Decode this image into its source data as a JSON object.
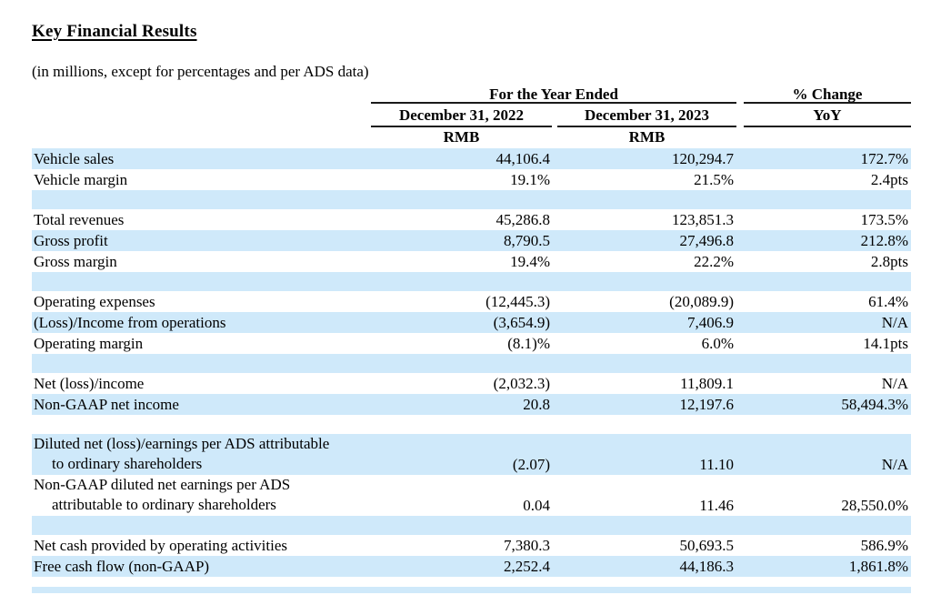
{
  "page": {
    "title": "Key Financial Results",
    "subtitle": "(in millions, except for percentages and per ADS data)"
  },
  "table": {
    "header": {
      "year_ended_group": "For the Year Ended",
      "change_group": "% Change",
      "col_2022": "December 31, 2022",
      "col_2023": "December 31, 2023",
      "col_yoy": "YoY",
      "unit_2022": "RMB",
      "unit_2023": "RMB"
    },
    "rows": [
      {
        "type": "data",
        "shade": true,
        "label": "Vehicle sales",
        "v2022": "44,106.4",
        "v2023": "120,294.7",
        "yoy": "172.7%"
      },
      {
        "type": "data",
        "shade": false,
        "label": "Vehicle margin",
        "v2022": "19.1%",
        "v2023": "21.5%",
        "yoy": "2.4pts"
      },
      {
        "type": "spacer",
        "shade": true
      },
      {
        "type": "data",
        "shade": false,
        "label": "Total revenues",
        "v2022": "45,286.8",
        "v2023": "123,851.3",
        "yoy": "173.5%"
      },
      {
        "type": "data",
        "shade": true,
        "label": "Gross profit",
        "v2022": "8,790.5",
        "v2023": "27,496.8",
        "yoy": "212.8%"
      },
      {
        "type": "data",
        "shade": false,
        "label": "Gross margin",
        "v2022": "19.4%",
        "v2023": "22.2%",
        "yoy": "2.8pts"
      },
      {
        "type": "spacer",
        "shade": true
      },
      {
        "type": "data",
        "shade": false,
        "label": "Operating expenses",
        "v2022": "(12,445.3)",
        "v2023": "(20,089.9)",
        "yoy": "61.4%"
      },
      {
        "type": "data",
        "shade": true,
        "label": "(Loss)/Income from operations",
        "v2022": "(3,654.9)",
        "v2023": "7,406.9",
        "yoy": "N/A"
      },
      {
        "type": "data",
        "shade": false,
        "label": "Operating margin",
        "v2022": "(8.1)%",
        "v2023": "6.0%",
        "yoy": "14.1pts"
      },
      {
        "type": "spacer",
        "shade": true
      },
      {
        "type": "data",
        "shade": false,
        "label": "Net (loss)/income",
        "v2022": "(2,032.3)",
        "v2023": "11,809.1",
        "yoy": "N/A"
      },
      {
        "type": "data",
        "shade": true,
        "label": "Non-GAAP net income",
        "v2022": "20.8",
        "v2023": "12,197.6",
        "yoy": "58,494.3%"
      },
      {
        "type": "spacer",
        "shade": false
      },
      {
        "type": "data2",
        "shade": true,
        "label": "Diluted net (loss)/earnings per ADS attributable",
        "label2": "to ordinary shareholders",
        "v2022": "(2.07)",
        "v2023": "11.10",
        "yoy": "N/A"
      },
      {
        "type": "data2",
        "shade": false,
        "label": "Non-GAAP diluted net earnings per ADS",
        "label2": "attributable to ordinary shareholders",
        "v2022": "0.04",
        "v2023": "11.46",
        "yoy": "28,550.0%"
      },
      {
        "type": "spacer",
        "shade": true
      },
      {
        "type": "data",
        "shade": false,
        "label": "Net cash provided by operating activities",
        "v2022": "7,380.3",
        "v2023": "50,693.5",
        "yoy": "586.9%"
      },
      {
        "type": "data",
        "shade": true,
        "label": "Free cash flow (non-GAAP)",
        "v2022": "2,252.4",
        "v2023": "44,186.3",
        "yoy": "1,861.8%"
      },
      {
        "type": "gap",
        "shade": false
      },
      {
        "type": "strip",
        "shade": true
      }
    ]
  },
  "colors": {
    "row_highlight": "#cfe9fa",
    "rule": "#1a1a1a",
    "text": "#000000"
  }
}
